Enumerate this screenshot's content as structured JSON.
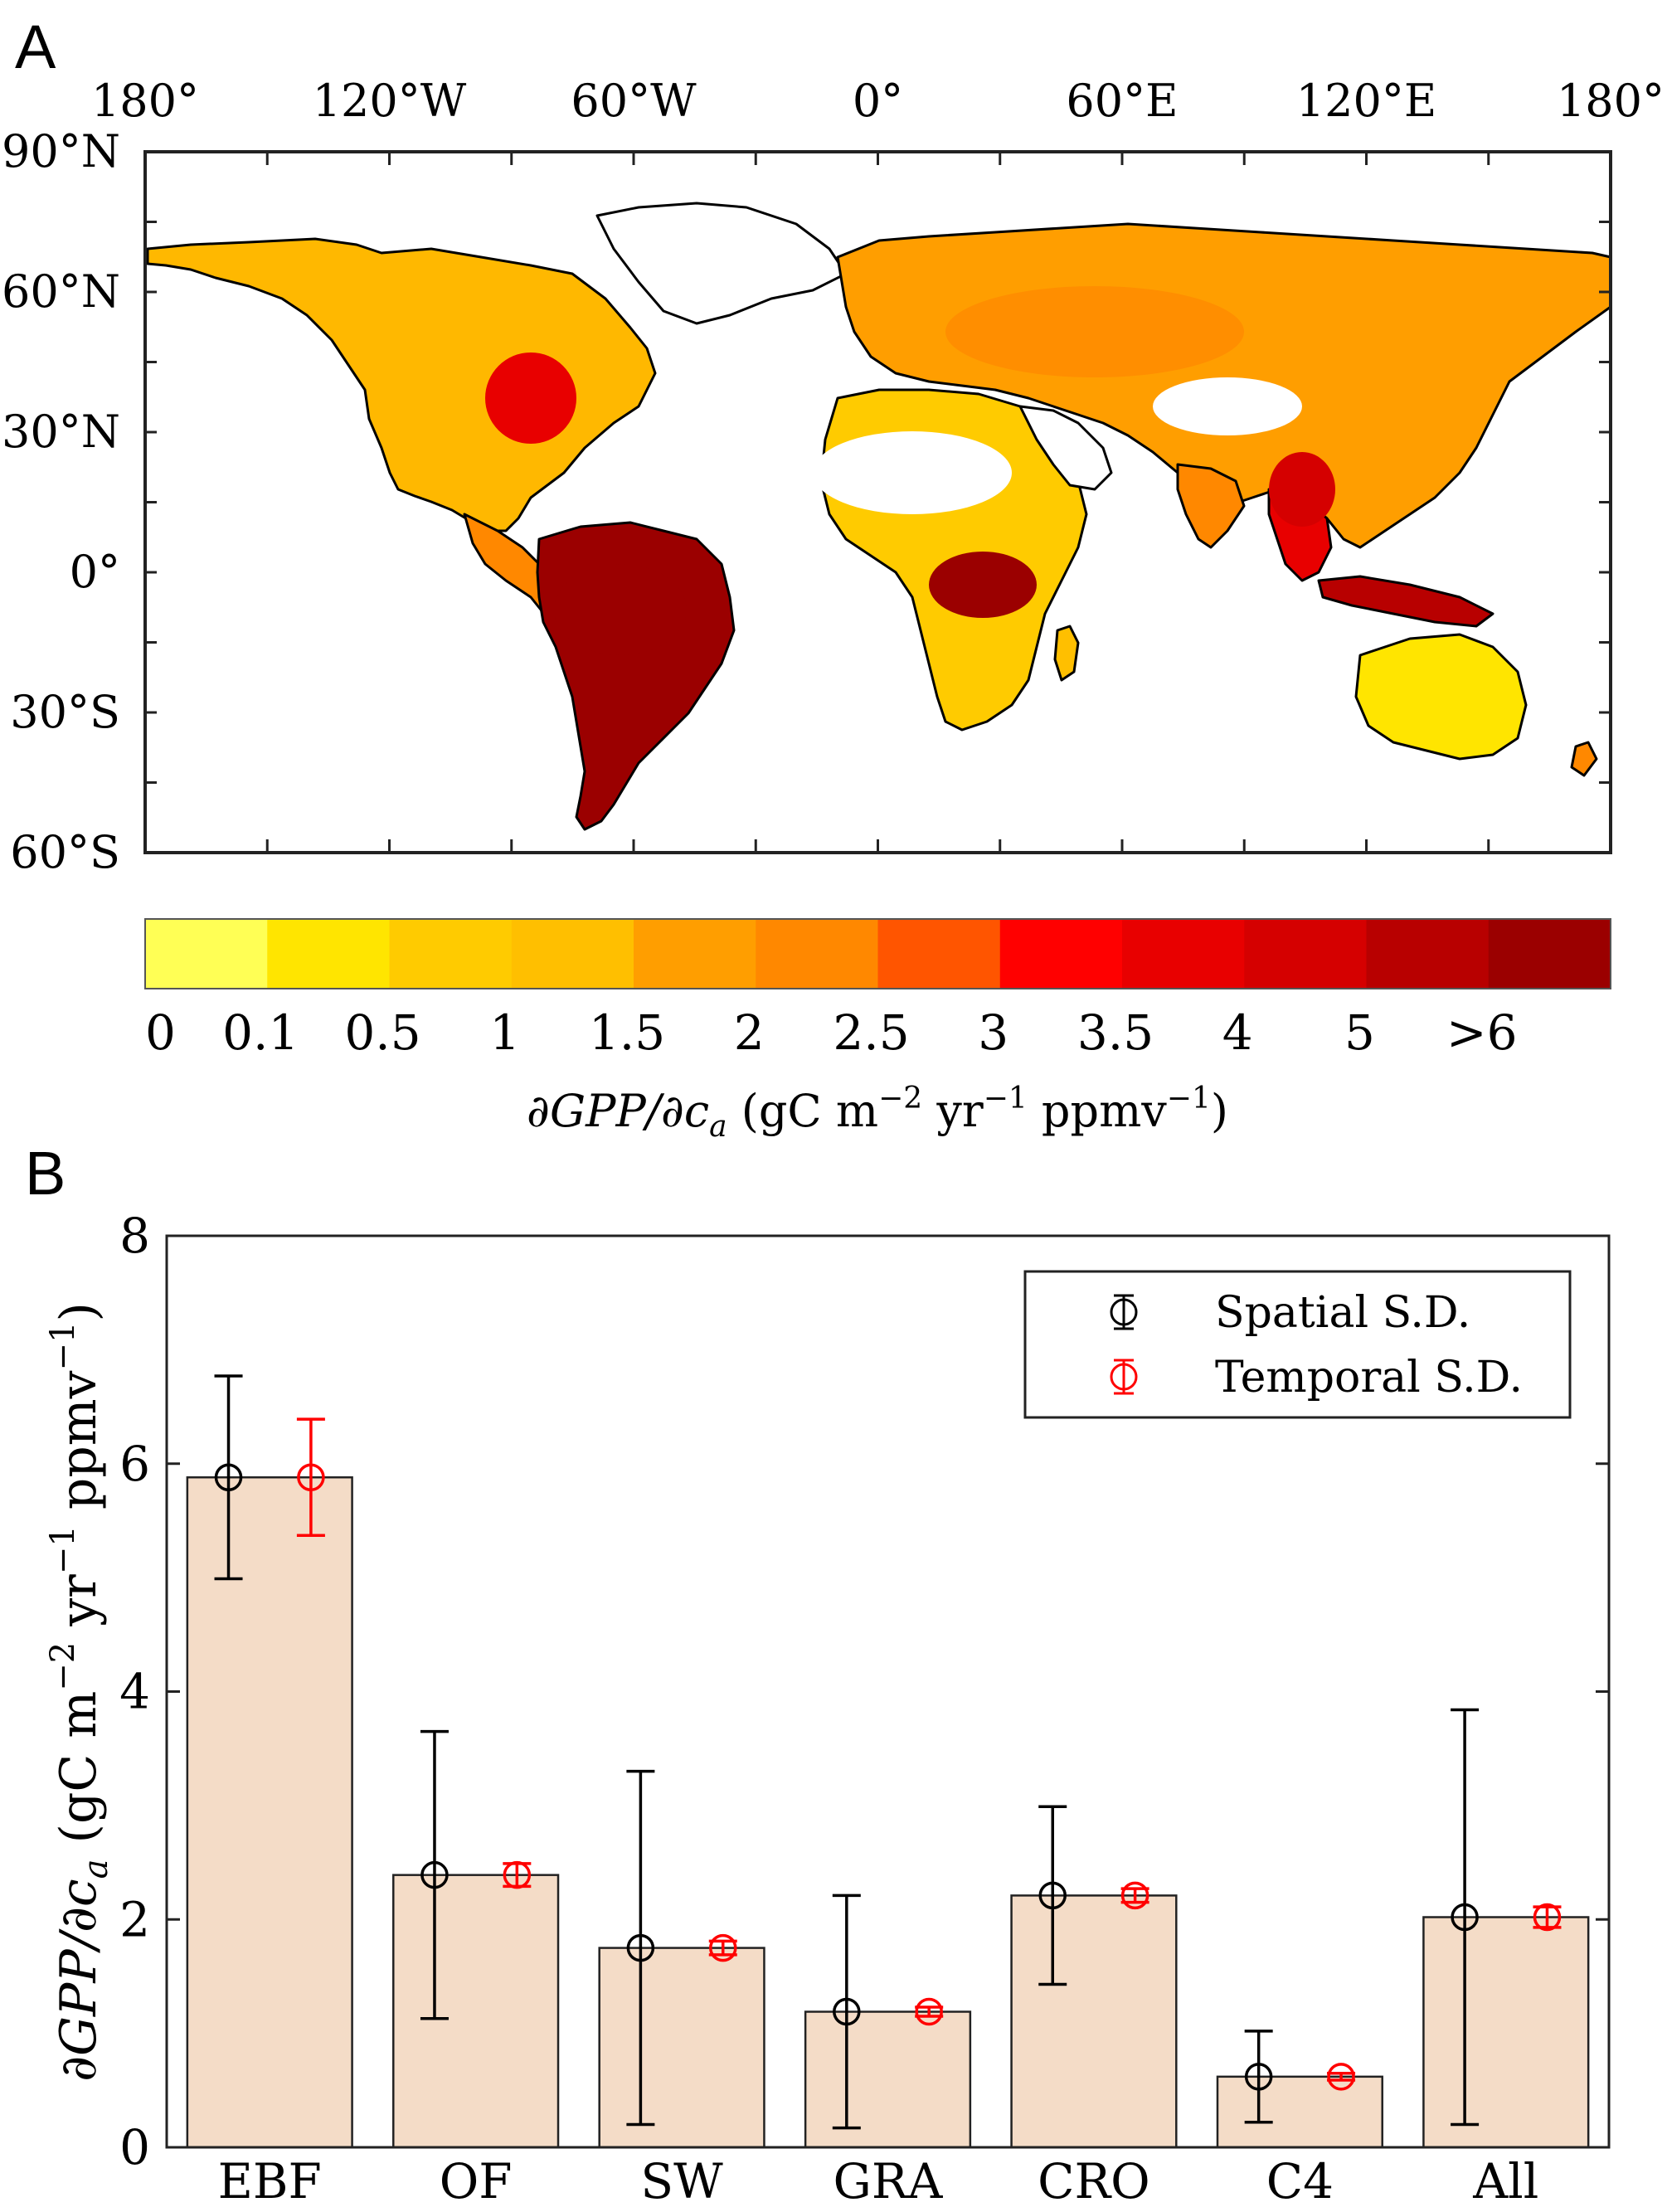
{
  "figure": {
    "panel_a_label": "A",
    "panel_b_label": "B"
  },
  "map": {
    "lon_ticks": [
      "180°",
      "120°W",
      "60°W",
      "0°",
      "60°E",
      "120°E",
      "180°"
    ],
    "lat_ticks": [
      "90°N",
      "60°N",
      "30°N",
      "0°",
      "30°S",
      "60°S"
    ],
    "lon_range": [
      -180,
      180
    ],
    "lat_range": [
      -60,
      90
    ],
    "colorbar_ticks": [
      "0",
      "0.1",
      "0.5",
      "1",
      "1.5",
      "2",
      "2.5",
      "3",
      "3.5",
      "4",
      "5",
      ">6"
    ],
    "colorbar_colors": [
      "#ffff55",
      "#ffe500",
      "#ffcb00",
      "#ffbf00",
      "#ff9e00",
      "#ff8800",
      "#ff5500",
      "#ff0000",
      "#e80000",
      "#d50000",
      "#b80000",
      "#9b0000"
    ],
    "colorbar_label": "∂GPP/∂c",
    "colorbar_label_sub": "a",
    "colorbar_units": " (gC m",
    "units_exp1": "−2",
    "units_yr": " yr",
    "units_exp2": "−1",
    "units_ppmv": " ppmv",
    "units_exp3": "−1",
    "units_close": ")"
  },
  "chart_data": {
    "type": "bar",
    "categories": [
      "EBF",
      "OF",
      "SW",
      "GRA",
      "CRO",
      "C4",
      "All"
    ],
    "values": [
      5.88,
      2.39,
      1.75,
      1.19,
      2.21,
      0.62,
      2.02
    ],
    "spatial_sd": [
      0.89,
      1.26,
      1.55,
      1.02,
      0.78,
      0.4,
      1.82
    ],
    "temporal_sd": [
      0.51,
      0.1,
      0.06,
      0.04,
      0.06,
      0.03,
      0.09
    ],
    "ylim": [
      0,
      8
    ],
    "yticks": [
      0,
      2,
      4,
      6,
      8
    ],
    "ylabel": "∂GPP/∂c",
    "ylabel_sub": "a",
    "ylabel_units": " (gC m",
    "ylabel_exp1": "−2",
    "ylabel_yr": " yr",
    "ylabel_exp2": "−1",
    "ylabel_ppmv": " ppmv",
    "ylabel_exp3": "−1",
    "ylabel_close": ")",
    "legend": [
      "Spatial S.D.",
      "Temporal S.D."
    ],
    "legend_position": "top-right",
    "colors": {
      "bar": "#f4dcc7",
      "spatial": "#000000",
      "temporal": "#ff0000"
    }
  }
}
